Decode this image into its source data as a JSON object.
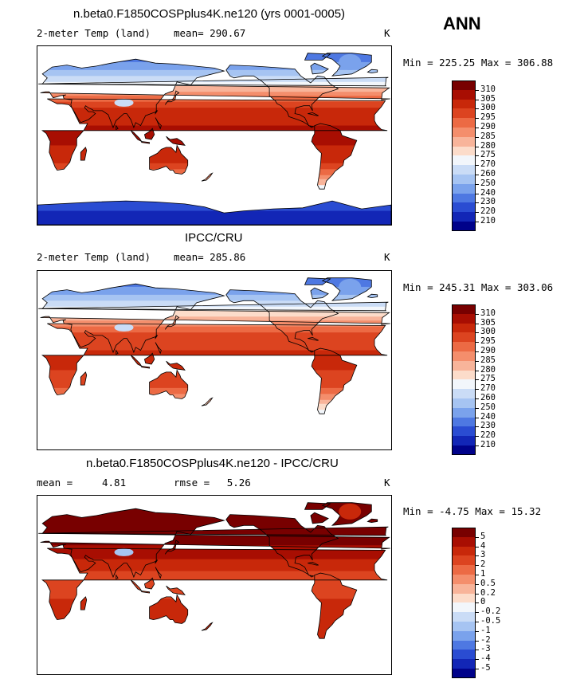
{
  "season": "ANN",
  "panels": [
    {
      "title": "n.beta0.F1850COSPplus4K.ne120 (yrs 0001-0005)",
      "left_label": "2-meter Temp (land)",
      "center_prefix": "mean=",
      "center_value": "290.67",
      "rmse_prefix": "",
      "rmse_value": "",
      "units": "K",
      "range_text": "Min = 225.25 Max = 306.88",
      "kind": "abs",
      "antarctica": true,
      "colorbar_levels": [
        "310",
        "305",
        "300",
        "295",
        "290",
        "285",
        "280",
        "275",
        "270",
        "260",
        "250",
        "240",
        "230",
        "220",
        "210"
      ]
    },
    {
      "title": "IPCC/CRU",
      "left_label": "2-meter Temp (land)",
      "center_prefix": "mean=",
      "center_value": "285.86",
      "rmse_prefix": "",
      "rmse_value": "",
      "units": "K",
      "range_text": "Min = 245.31 Max = 303.06",
      "kind": "abs",
      "antarctica": false,
      "colorbar_levels": [
        "310",
        "305",
        "300",
        "295",
        "290",
        "285",
        "280",
        "275",
        "270",
        "260",
        "250",
        "240",
        "230",
        "220",
        "210"
      ]
    },
    {
      "title": "n.beta0.F1850COSPplus4K.ne120 - IPCC/CRU",
      "left_label": "mean =",
      "center_prefix": "",
      "center_value": "4.81",
      "rmse_prefix": "rmse =",
      "rmse_value": "5.26",
      "units": "K",
      "range_text": "Min =  -4.75 Max =  15.32",
      "kind": "diff",
      "antarctica": false,
      "colorbar_levels": [
        "5",
        "4",
        "3",
        "2",
        "1",
        "0.5",
        "0.2",
        "0",
        "-0.2",
        "-0.5",
        "-1",
        "-2",
        "-3",
        "-4",
        "-5"
      ]
    }
  ],
  "colors": {
    "colorbar_fills": [
      "#780000",
      "#a80e02",
      "#c8280a",
      "#dc4420",
      "#ec6a44",
      "#f48e6c",
      "#f8b49a",
      "#fcdcca",
      "#f2f6fb",
      "#cadcf6",
      "#a6c4f2",
      "#7aa2ec",
      "#4e78e2",
      "#2a4cd2",
      "#1226b6",
      "#00028a"
    ],
    "ocean": "#ffffff",
    "coast": "#000000"
  },
  "chart_data": {
    "type": "heatmap",
    "variable": "2-meter Temp (land)",
    "units": "K",
    "season": "ANN",
    "panels": [
      {
        "name": "n.beta0.F1850COSPplus4K.ne120 (yrs 0001-0005)",
        "mean": 290.67,
        "min": 225.25,
        "max": 306.88,
        "levels": [
          210,
          220,
          230,
          240,
          250,
          260,
          270,
          275,
          280,
          285,
          290,
          295,
          300,
          305,
          310
        ]
      },
      {
        "name": "IPCC/CRU",
        "mean": 285.86,
        "min": 245.31,
        "max": 303.06,
        "levels": [
          210,
          220,
          230,
          240,
          250,
          260,
          270,
          275,
          280,
          285,
          290,
          295,
          300,
          305,
          310
        ]
      },
      {
        "name": "n.beta0.F1850COSPplus4K.ne120 - IPCC/CRU",
        "mean": 4.81,
        "rmse": 5.26,
        "min": -4.75,
        "max": 15.32,
        "levels": [
          -5,
          -4,
          -3,
          -2,
          -1,
          -0.5,
          -0.2,
          0,
          0.2,
          0.5,
          1,
          2,
          3,
          4,
          5
        ]
      }
    ],
    "projection": "cylindrical equidistant, centered at 180",
    "lon_range": [
      0,
      360
    ],
    "lat_range": [
      -90,
      90
    ]
  }
}
